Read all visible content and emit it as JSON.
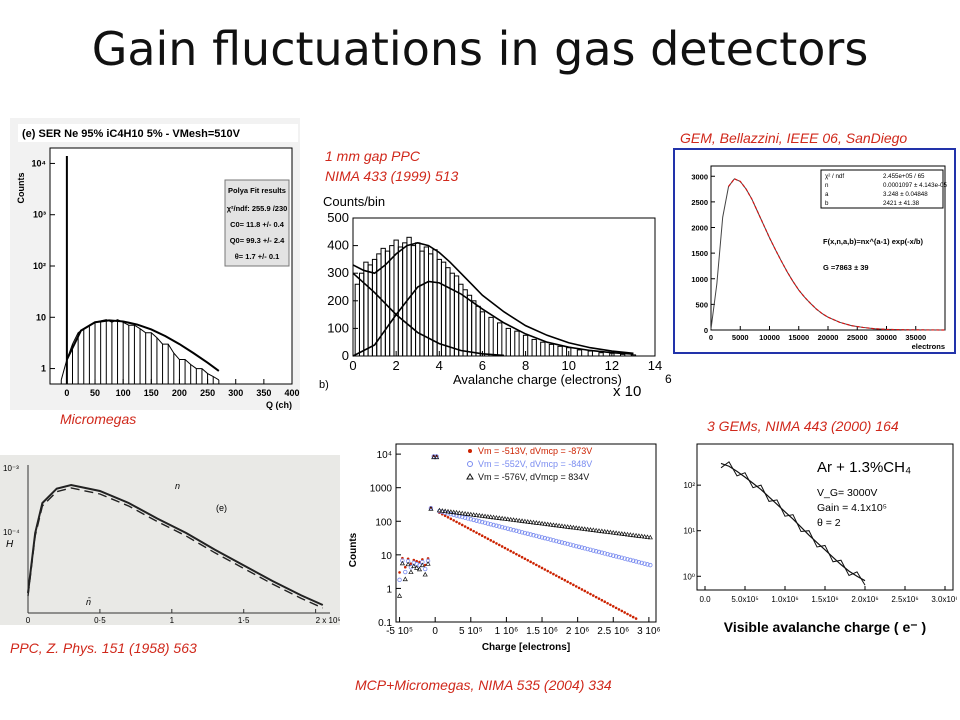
{
  "slide": {
    "title": "Gain fluctuations in gas detectors",
    "captions": {
      "micromegas": "Micromegas",
      "ppc_gap_1": "1 mm gap PPC",
      "ppc_gap_2": "NIMA 433 (1999) 513",
      "gem_bellazzini": "GEM, Bellazzini, IEEE 06, SanDiego",
      "three_gems": "3 GEMs, NIMA 443 (2000) 164",
      "ppc_zphys": "PPC, Z. Phys. 151 (1958) 563",
      "mcp": "MCP+Micromegas, NIMA 535 (2004) 334"
    }
  },
  "chart_data": [
    {
      "id": "micromegas",
      "type": "scatter",
      "title": "(e) SER Ne 95% iC4H10 5% - VMesh=510V",
      "xlabel": "Q (ch)",
      "ylabel": "Counts",
      "xlim": [
        -30,
        400
      ],
      "ylim": [
        0.5,
        20000
      ],
      "yscale": "log",
      "x_ticks": [
        "0",
        "50",
        "100",
        "150",
        "200",
        "250",
        "300",
        "350",
        "400"
      ],
      "y_ticks": [
        "1",
        "10",
        "10²",
        "10³",
        "10⁴"
      ],
      "legend_box": {
        "title": "Polya Fit results",
        "lines": [
          "χ²/ndf: 255.9 /230",
          "C0= 11.8 +/- 0.4",
          "Q0= 99.3 +/- 2.4",
          "θ= 1.7 +/- 0.1"
        ]
      },
      "data_x": [
        -10,
        0,
        10,
        20,
        30,
        40,
        50,
        60,
        70,
        80,
        90,
        100,
        110,
        120,
        130,
        140,
        150,
        160,
        170,
        180,
        190,
        200,
        210,
        220,
        230,
        240,
        250,
        260,
        270
      ],
      "data_y": [
        0.6,
        1.5,
        3,
        5,
        6,
        7,
        8,
        8.5,
        9,
        8,
        9,
        8,
        7,
        7,
        6,
        5,
        5,
        4,
        3,
        3,
        2,
        1.5,
        1.5,
        1.2,
        1,
        1,
        0.8,
        0.7,
        0.6
      ],
      "spike": {
        "x": 0,
        "y": 14000
      },
      "fit_x": [
        0,
        25,
        50,
        75,
        100,
        125,
        150,
        175,
        200,
        225,
        250,
        270
      ],
      "fit_y": [
        1.5,
        5.5,
        8,
        8.7,
        8.3,
        7.2,
        5.8,
        4.3,
        3,
        2,
        1.3,
        0.9
      ]
    },
    {
      "id": "ppc_1mm",
      "type": "bar",
      "xlabel": "Avalanche charge (electrons)",
      "ylabel": "Counts/bin",
      "x_multiplier": "x 10",
      "x_multiplier_exp": "6",
      "panel_label": "b)",
      "xlim": [
        0,
        14
      ],
      "ylim": [
        0,
        500
      ],
      "x_ticks": [
        "0",
        "2",
        "4",
        "6",
        "8",
        "10",
        "12",
        "14"
      ],
      "y_ticks": [
        "0",
        "100",
        "200",
        "300",
        "400",
        "500"
      ],
      "bin_width": 0.2,
      "x": [
        0.2,
        0.4,
        0.6,
        0.8,
        1.0,
        1.2,
        1.4,
        1.6,
        1.8,
        2.0,
        2.2,
        2.4,
        2.6,
        2.8,
        3.0,
        3.2,
        3.4,
        3.6,
        3.8,
        4.0,
        4.2,
        4.4,
        4.6,
        4.8,
        5.0,
        5.2,
        5.4,
        5.6,
        5.8,
        6.0,
        6.4,
        6.8,
        7.2,
        7.6,
        8.0,
        8.4,
        8.8,
        9.2,
        9.6,
        10.0,
        10.5,
        11.0,
        11.5,
        12.0,
        12.5,
        13.0
      ],
      "counts": [
        260,
        300,
        340,
        330,
        350,
        370,
        390,
        380,
        400,
        420,
        395,
        410,
        430,
        400,
        410,
        380,
        395,
        370,
        385,
        350,
        340,
        320,
        300,
        290,
        260,
        240,
        220,
        200,
        180,
        160,
        140,
        120,
        100,
        90,
        75,
        60,
        50,
        42,
        35,
        30,
        22,
        18,
        12,
        10,
        6,
        4
      ],
      "fit_total_x": [
        0,
        0.5,
        1,
        1.5,
        2,
        2.5,
        3,
        3.5,
        4,
        4.5,
        5,
        5.5,
        6,
        7,
        8,
        9,
        10,
        11,
        12,
        13
      ],
      "fit_total_y": [
        330,
        310,
        300,
        330,
        370,
        400,
        410,
        400,
        375,
        340,
        300,
        260,
        220,
        160,
        110,
        75,
        48,
        30,
        18,
        10
      ],
      "fit_low_x": [
        0,
        1,
        2,
        3,
        4,
        5,
        6,
        7
      ],
      "fit_low_y": [
        300,
        230,
        150,
        85,
        45,
        20,
        8,
        2
      ],
      "fit_high_x": [
        0,
        1,
        2,
        3,
        3.5,
        4,
        5,
        6,
        7,
        8,
        9,
        10,
        11,
        12,
        13
      ],
      "fit_high_y": [
        0,
        40,
        150,
        250,
        270,
        265,
        225,
        170,
        120,
        80,
        50,
        32,
        20,
        12,
        7
      ]
    },
    {
      "id": "gem_bellazzini",
      "type": "line",
      "xlabel": "electrons",
      "xlim": [
        0,
        40000
      ],
      "ylim": [
        0,
        3200
      ],
      "x_ticks": [
        "0",
        "5000",
        "10000",
        "15000",
        "20000",
        "25000",
        "30000",
        "35000"
      ],
      "y_ticks": [
        "0",
        "500",
        "1000",
        "1500",
        "2000",
        "2500",
        "3000"
      ],
      "stats": [
        [
          "χ² / ndf",
          "2.455e+05 / 65"
        ],
        [
          "n",
          "0.0001097 ± 4.143e-05"
        ],
        [
          "a",
          "3.248 ± 0.04848"
        ],
        [
          "b",
          "2421 ± 41.38"
        ]
      ],
      "formula": "F(x,n,a,b)=nx^(a-1) exp(-x/b)",
      "mean_label": "G =7863 ± 39",
      "x": [
        0,
        1000,
        2000,
        3000,
        4000,
        5000,
        6000,
        7000,
        8000,
        9000,
        10000,
        11000,
        12000,
        13000,
        14000,
        15000,
        16000,
        17000,
        18000,
        19000,
        20000,
        22000,
        24000,
        26000,
        28000,
        30000,
        33000,
        36000,
        40000
      ],
      "y": [
        20,
        900,
        2200,
        2800,
        2950,
        2900,
        2750,
        2550,
        2300,
        2050,
        1800,
        1570,
        1350,
        1140,
        950,
        780,
        640,
        520,
        410,
        320,
        250,
        150,
        85,
        50,
        25,
        12,
        5,
        2,
        0
      ]
    },
    {
      "id": "ppc_zphys",
      "type": "line",
      "xlabel": "",
      "ylabel": "H",
      "y_ticks": [
        "10⁻³",
        "10⁻⁴"
      ],
      "x_ticks": [
        "0",
        "0·5",
        "1",
        "1·5",
        "2 x 10⁵"
      ],
      "curve_labels": [
        "n",
        "(e)",
        "n̄"
      ],
      "x": [
        0,
        0.05,
        0.1,
        0.2,
        0.3,
        0.5,
        0.7,
        0.9,
        1.1,
        1.3,
        1.5,
        1.7,
        1.9,
        2.05
      ],
      "y": [
        0.1,
        0.6,
        0.85,
        0.97,
        1.0,
        0.95,
        0.85,
        0.72,
        0.6,
        0.46,
        0.33,
        0.2,
        0.08,
        0.0
      ]
    },
    {
      "id": "mcp_micromegas",
      "type": "scatter",
      "xlabel": "Charge [electrons]",
      "ylabel": "Counts",
      "yscale": "log",
      "ylim": [
        0.1,
        20000
      ],
      "x_ticks": [
        "-5 10⁵",
        "0",
        "5 10⁵",
        "1 10⁶",
        "1.5 10⁶",
        "2 10⁶",
        "2.5 10⁶",
        "3 10⁶"
      ],
      "y_ticks": [
        "0.1",
        "1",
        "10",
        "100",
        "1000",
        "10⁴"
      ],
      "series": [
        {
          "name": "Vm = -513V, dVmcp = -873V",
          "color": "#cc2200",
          "marker": "dot"
        },
        {
          "name": "Vm = -552V, dVmcp = -848V",
          "color": "#7a8cf0",
          "marker": "circle"
        },
        {
          "name": "Vm = -576V, dVmcp = 834V",
          "color": "#111111",
          "marker": "triangle"
        }
      ]
    },
    {
      "id": "three_gems",
      "type": "line",
      "xlabel": "Visible avalanche charge ( e⁻ )",
      "ylabel": "Counts",
      "yscale": "log",
      "annotation_gas": "Ar + 1.3%CH₄",
      "annotation_lines": [
        "V_G= 3000V",
        "Gain = 4.1x10⁵",
        "θ = 2"
      ],
      "x_ticks": [
        "0.0",
        "5.0x10⁵",
        "1.0x10⁶",
        "1.5x10⁶",
        "2.0x10⁶",
        "2.5x10⁶",
        "3.0x10⁶"
      ],
      "y_ticks": [
        "10⁰",
        "10¹",
        "10²"
      ],
      "x": [
        0.2,
        0.3,
        0.4,
        0.5,
        0.6,
        0.7,
        0.8,
        0.9,
        1.0,
        1.1,
        1.2,
        1.3,
        1.4,
        1.5,
        1.6,
        1.7,
        1.8,
        1.9,
        2.0
      ],
      "y": [
        300,
        260,
        200,
        150,
        110,
        80,
        55,
        38,
        26,
        18,
        12,
        8,
        5.5,
        3.8,
        2.6,
        1.8,
        1.3,
        1.0,
        0.8
      ]
    }
  ]
}
